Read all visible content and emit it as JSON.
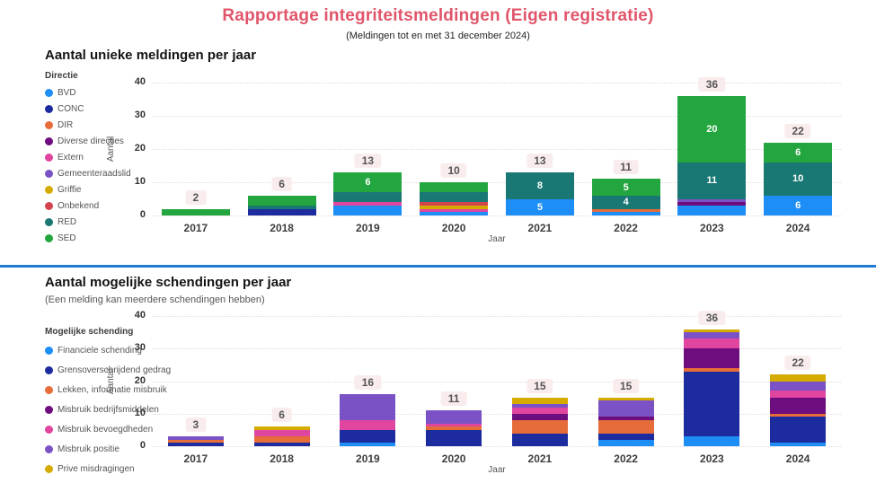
{
  "page": {
    "title": "Rapportage integriteitsmeldingen (Eigen registratie)",
    "subtitle": "(Meldingen tot en met 31 december 2024)"
  },
  "accent_colors": {
    "title_text": "#E0556A",
    "divider": "#1F7AD4",
    "total_badge_bg": "#F9ECEC",
    "total_badge_text": "#555555"
  },
  "chart_data": [
    {
      "type": "bar",
      "stacked": true,
      "heading": "Aantal unieke meldingen per jaar",
      "subheading": "",
      "legend_title": "Directie",
      "legend_position": "left",
      "xlabel": "Jaar",
      "ylabel": "Aantal",
      "ylim": [
        0,
        40
      ],
      "yticks": [
        0,
        10,
        20,
        30,
        40
      ],
      "grid": "dotted-horizontal",
      "categories": [
        "2017",
        "2018",
        "2019",
        "2020",
        "2021",
        "2022",
        "2023",
        "2024"
      ],
      "series": [
        {
          "name": "BVD",
          "color": "#1E8EF7",
          "values": [
            0,
            0,
            3,
            1,
            5,
            1,
            3,
            6
          ]
        },
        {
          "name": "CONC",
          "color": "#1C2B9E",
          "values": [
            0,
            2,
            0,
            0,
            0,
            0,
            0,
            0
          ]
        },
        {
          "name": "DIR",
          "color": "#E66C39",
          "values": [
            0,
            0,
            0,
            0,
            0,
            1,
            0,
            0
          ]
        },
        {
          "name": "Diverse directies",
          "color": "#6E0D7D",
          "values": [
            0,
            0,
            0,
            0,
            0,
            0,
            1,
            0
          ]
        },
        {
          "name": "Extern",
          "color": "#E0459F",
          "values": [
            0,
            0,
            1,
            1,
            0,
            0,
            0,
            0
          ]
        },
        {
          "name": "Gemeenteraadslid",
          "color": "#7A52C5",
          "values": [
            0,
            0,
            0,
            0,
            0,
            0,
            1,
            0
          ]
        },
        {
          "name": "Griffie",
          "color": "#D6AB00",
          "values": [
            0,
            0,
            0,
            1,
            0,
            0,
            0,
            0
          ]
        },
        {
          "name": "Onbekend",
          "color": "#D4444E",
          "values": [
            0,
            0,
            0,
            1,
            0,
            0,
            0,
            0
          ]
        },
        {
          "name": "RED",
          "color": "#1A7874",
          "values": [
            0,
            1,
            3,
            3,
            8,
            4,
            11,
            10
          ]
        },
        {
          "name": "SED",
          "color": "#23A63F",
          "values": [
            2,
            3,
            6,
            3,
            0,
            5,
            20,
            6
          ]
        }
      ],
      "totals": [
        2,
        6,
        13,
        10,
        13,
        11,
        36,
        22
      ],
      "segment_label_min": 4
    },
    {
      "type": "bar",
      "stacked": true,
      "heading": "Aantal mogelijke schendingen per jaar",
      "subheading": "(Een melding kan meerdere schendingen hebben)",
      "legend_title": "Mogelijke schending",
      "legend_position": "left",
      "xlabel": "Jaar",
      "ylabel": "Aantal",
      "ylim": [
        0,
        40
      ],
      "yticks": [
        0,
        10,
        20,
        30,
        40
      ],
      "grid": "dotted-horizontal",
      "categories": [
        "2017",
        "2018",
        "2019",
        "2020",
        "2021",
        "2022",
        "2023",
        "2024"
      ],
      "series": [
        {
          "name": "Financiele schending",
          "color": "#1E8EF7",
          "values": [
            0,
            0,
            1,
            0,
            0,
            2,
            3,
            1
          ]
        },
        {
          "name": "Grensoverschrijdend gedrag",
          "color": "#1C2B9E",
          "values": [
            1,
            1,
            4,
            5,
            4,
            2,
            20,
            8
          ]
        },
        {
          "name": "Lekken, informatie misbruik",
          "color": "#E66C39",
          "values": [
            1,
            2,
            0,
            1,
            4,
            4,
            1,
            1
          ]
        },
        {
          "name": "Misbruik bedrijfsmiddelen",
          "color": "#6E0D7D",
          "values": [
            0,
            0,
            0,
            0,
            2,
            1,
            6,
            5
          ]
        },
        {
          "name": "Misbruik bevoegdheden",
          "color": "#E0459F",
          "values": [
            0,
            2,
            3,
            1,
            2,
            0,
            3,
            2
          ]
        },
        {
          "name": "Misbruik positie",
          "color": "#7A52C5",
          "values": [
            1,
            0,
            8,
            4,
            1,
            5,
            2,
            3
          ]
        },
        {
          "name": "Prive misdragingen",
          "color": "#D6AB00",
          "values": [
            0,
            1,
            0,
            0,
            2,
            1,
            1,
            2
          ]
        }
      ],
      "totals": [
        3,
        6,
        16,
        11,
        15,
        15,
        36,
        22
      ],
      "segment_label_min": null
    }
  ]
}
